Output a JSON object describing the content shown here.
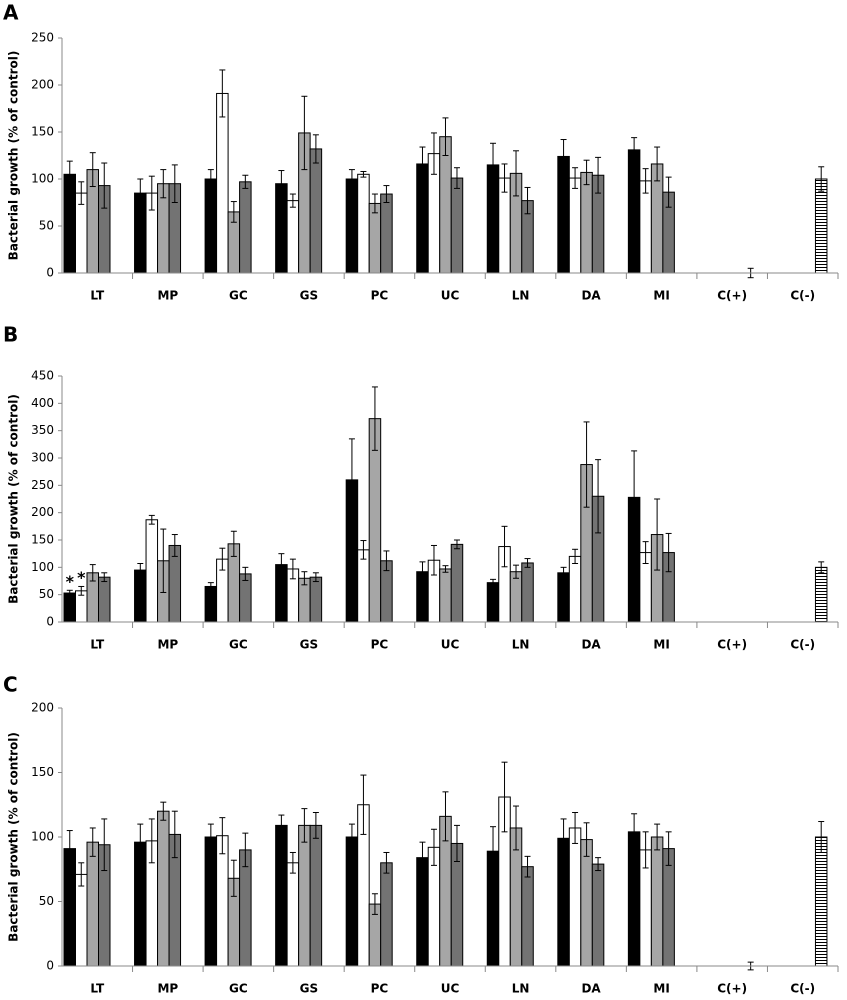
{
  "chart_data": [
    {
      "type": "bar",
      "label": "A",
      "ylabel": "Bacterial growth (% of control)",
      "categories": [
        "LT",
        "MP",
        "GC",
        "GS",
        "PC",
        "UC",
        "LN",
        "DA",
        "MI",
        "C(+)",
        "C(-)"
      ],
      "ylim": [
        0,
        250
      ],
      "yticks": [
        0,
        50,
        100,
        150,
        200,
        250
      ],
      "series": [
        {
          "color": "#000000",
          "values": [
            105,
            85,
            100,
            95,
            100,
            116,
            115,
            124,
            131,
            null,
            null
          ],
          "errors": [
            14,
            15,
            10,
            14,
            10,
            18,
            23,
            18,
            13,
            null,
            null
          ]
        },
        {
          "color": "#ffffff",
          "values": [
            85,
            85,
            191,
            77,
            105,
            127,
            101,
            101,
            98,
            null,
            null
          ],
          "errors": [
            12,
            18,
            25,
            7,
            3,
            22,
            15,
            11,
            13,
            null,
            null
          ]
        },
        {
          "color": "#a6a6a6",
          "values": [
            110,
            95,
            65,
            149,
            74,
            145,
            106,
            107,
            116,
            null,
            null
          ],
          "errors": [
            18,
            15,
            11,
            39,
            10,
            20,
            24,
            13,
            18,
            null,
            null
          ]
        },
        {
          "color": "#737373",
          "values": [
            93,
            95,
            97,
            132,
            84,
            101,
            77,
            104,
            86,
            null,
            null
          ],
          "errors": [
            24,
            20,
            7,
            15,
            9,
            11,
            14,
            19,
            16,
            null,
            null
          ]
        },
        {
          "color": "#ffffff",
          "hatch": true,
          "values": [
            null,
            null,
            null,
            null,
            null,
            null,
            null,
            null,
            null,
            0,
            100
          ],
          "errors": [
            null,
            null,
            null,
            null,
            null,
            null,
            null,
            null,
            null,
            5,
            13
          ]
        }
      ]
    },
    {
      "type": "bar",
      "label": "B",
      "ylabel": "Bacterial growth (% of control)",
      "categories": [
        "LT",
        "MP",
        "GC",
        "GS",
        "PC",
        "UC",
        "LN",
        "DA",
        "MI",
        "C(+)",
        "C(-)"
      ],
      "ylim": [
        0,
        450
      ],
      "yticks": [
        0,
        50,
        100,
        150,
        200,
        250,
        300,
        350,
        400,
        450
      ],
      "annotations": [
        "*",
        "*"
      ],
      "series": [
        {
          "color": "#000000",
          "values": [
            53,
            95,
            65,
            105,
            260,
            92,
            72,
            90,
            228,
            null,
            null
          ],
          "errors": [
            5,
            12,
            7,
            20,
            75,
            18,
            6,
            10,
            85,
            null,
            null
          ]
        },
        {
          "color": "#ffffff",
          "values": [
            57,
            187,
            115,
            97,
            132,
            113,
            138,
            120,
            127,
            null,
            null
          ],
          "errors": [
            8,
            8,
            20,
            18,
            17,
            27,
            37,
            13,
            20,
            null,
            null
          ]
        },
        {
          "color": "#a6a6a6",
          "values": [
            90,
            112,
            143,
            80,
            372,
            97,
            92,
            288,
            160,
            null,
            null
          ],
          "errors": [
            15,
            58,
            23,
            12,
            58,
            6,
            12,
            78,
            65,
            null,
            null
          ]
        },
        {
          "color": "#737373",
          "values": [
            82,
            140,
            88,
            82,
            112,
            142,
            108,
            230,
            127,
            null,
            null
          ],
          "errors": [
            8,
            20,
            12,
            8,
            18,
            8,
            8,
            67,
            35,
            null,
            null
          ]
        },
        {
          "color": "#ffffff",
          "hatch": true,
          "values": [
            null,
            null,
            null,
            null,
            null,
            null,
            null,
            null,
            null,
            null,
            100
          ],
          "errors": [
            null,
            null,
            null,
            null,
            null,
            null,
            null,
            null,
            null,
            null,
            10
          ]
        }
      ]
    },
    {
      "type": "bar",
      "label": "C",
      "ylabel": "Bacterial growth (% of control)",
      "categories": [
        "LT",
        "MP",
        "GC",
        "GS",
        "PC",
        "UC",
        "LN",
        "DA",
        "MI",
        "C(+)",
        "C(-)"
      ],
      "ylim": [
        0,
        200
      ],
      "yticks": [
        0,
        50,
        100,
        150,
        200
      ],
      "series": [
        {
          "color": "#000000",
          "values": [
            91,
            96,
            100,
            109,
            100,
            84,
            89,
            99,
            104,
            null,
            null
          ],
          "errors": [
            14,
            14,
            10,
            8,
            10,
            12,
            19,
            15,
            14,
            null,
            null
          ]
        },
        {
          "color": "#ffffff",
          "values": [
            71,
            97,
            101,
            80,
            125,
            92,
            131,
            107,
            90,
            null,
            null
          ],
          "errors": [
            9,
            17,
            14,
            8,
            23,
            14,
            27,
            12,
            14,
            null,
            null
          ]
        },
        {
          "color": "#a6a6a6",
          "values": [
            96,
            120,
            68,
            109,
            48,
            116,
            107,
            98,
            100,
            null,
            null
          ],
          "errors": [
            11,
            7,
            14,
            13,
            8,
            19,
            17,
            13,
            10,
            null,
            null
          ]
        },
        {
          "color": "#737373",
          "values": [
            94,
            102,
            90,
            109,
            80,
            95,
            77,
            79,
            91,
            null,
            null
          ],
          "errors": [
            20,
            18,
            13,
            10,
            8,
            14,
            8,
            5,
            13,
            null,
            null
          ]
        },
        {
          "color": "#ffffff",
          "hatch": true,
          "values": [
            null,
            null,
            null,
            null,
            null,
            null,
            null,
            null,
            null,
            0,
            100
          ],
          "errors": [
            null,
            null,
            null,
            null,
            null,
            null,
            null,
            null,
            null,
            3,
            12
          ]
        }
      ]
    }
  ]
}
